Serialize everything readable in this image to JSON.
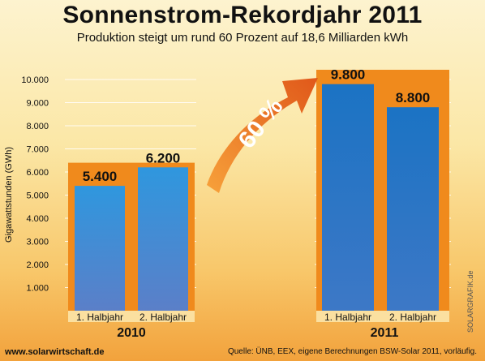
{
  "chart_data": {
    "type": "bar",
    "title": "Sonnenstrom-Rekordjahr 2011",
    "subtitle": "Produktion steigt um rund 60 Prozent auf 18,6 Milliarden kWh",
    "ylabel": "Gigawattstunden (GWh)",
    "ylim": [
      0,
      10000
    ],
    "yticks": [
      "1.000",
      "2.000",
      "3.000",
      "4.000",
      "5.000",
      "6.000",
      "7.000",
      "8.000",
      "9.000",
      "10.000"
    ],
    "ytick_values": [
      1000,
      2000,
      3000,
      4000,
      5000,
      6000,
      7000,
      8000,
      9000,
      10000
    ],
    "grid": true,
    "groups": [
      {
        "name": "2010",
        "bars": [
          {
            "category": "1. Halbjahr",
            "value": 5400,
            "label": "5.400"
          },
          {
            "category": "2. Halbjahr",
            "value": 6200,
            "label": "6.200"
          }
        ]
      },
      {
        "name": "2011",
        "bars": [
          {
            "category": "1. Halbjahr",
            "value": 9800,
            "label": "9.800"
          },
          {
            "category": "2. Halbjahr",
            "value": 8800,
            "label": "8.800"
          }
        ]
      }
    ],
    "annotation": "60 %",
    "colors": {
      "bar_2010": "#3a8fd6",
      "bar_2011": "#1d6fb8",
      "accent": "#f08a1c",
      "arrow": "#e8681a"
    }
  },
  "footer": {
    "website": "www.solarwirtschaft.de",
    "source": "Quelle: ÜNB, EEX, eigene Berechnungen BSW-Solar 2011, vorläufig.",
    "credit": "SOLARGRAFIK.de"
  }
}
